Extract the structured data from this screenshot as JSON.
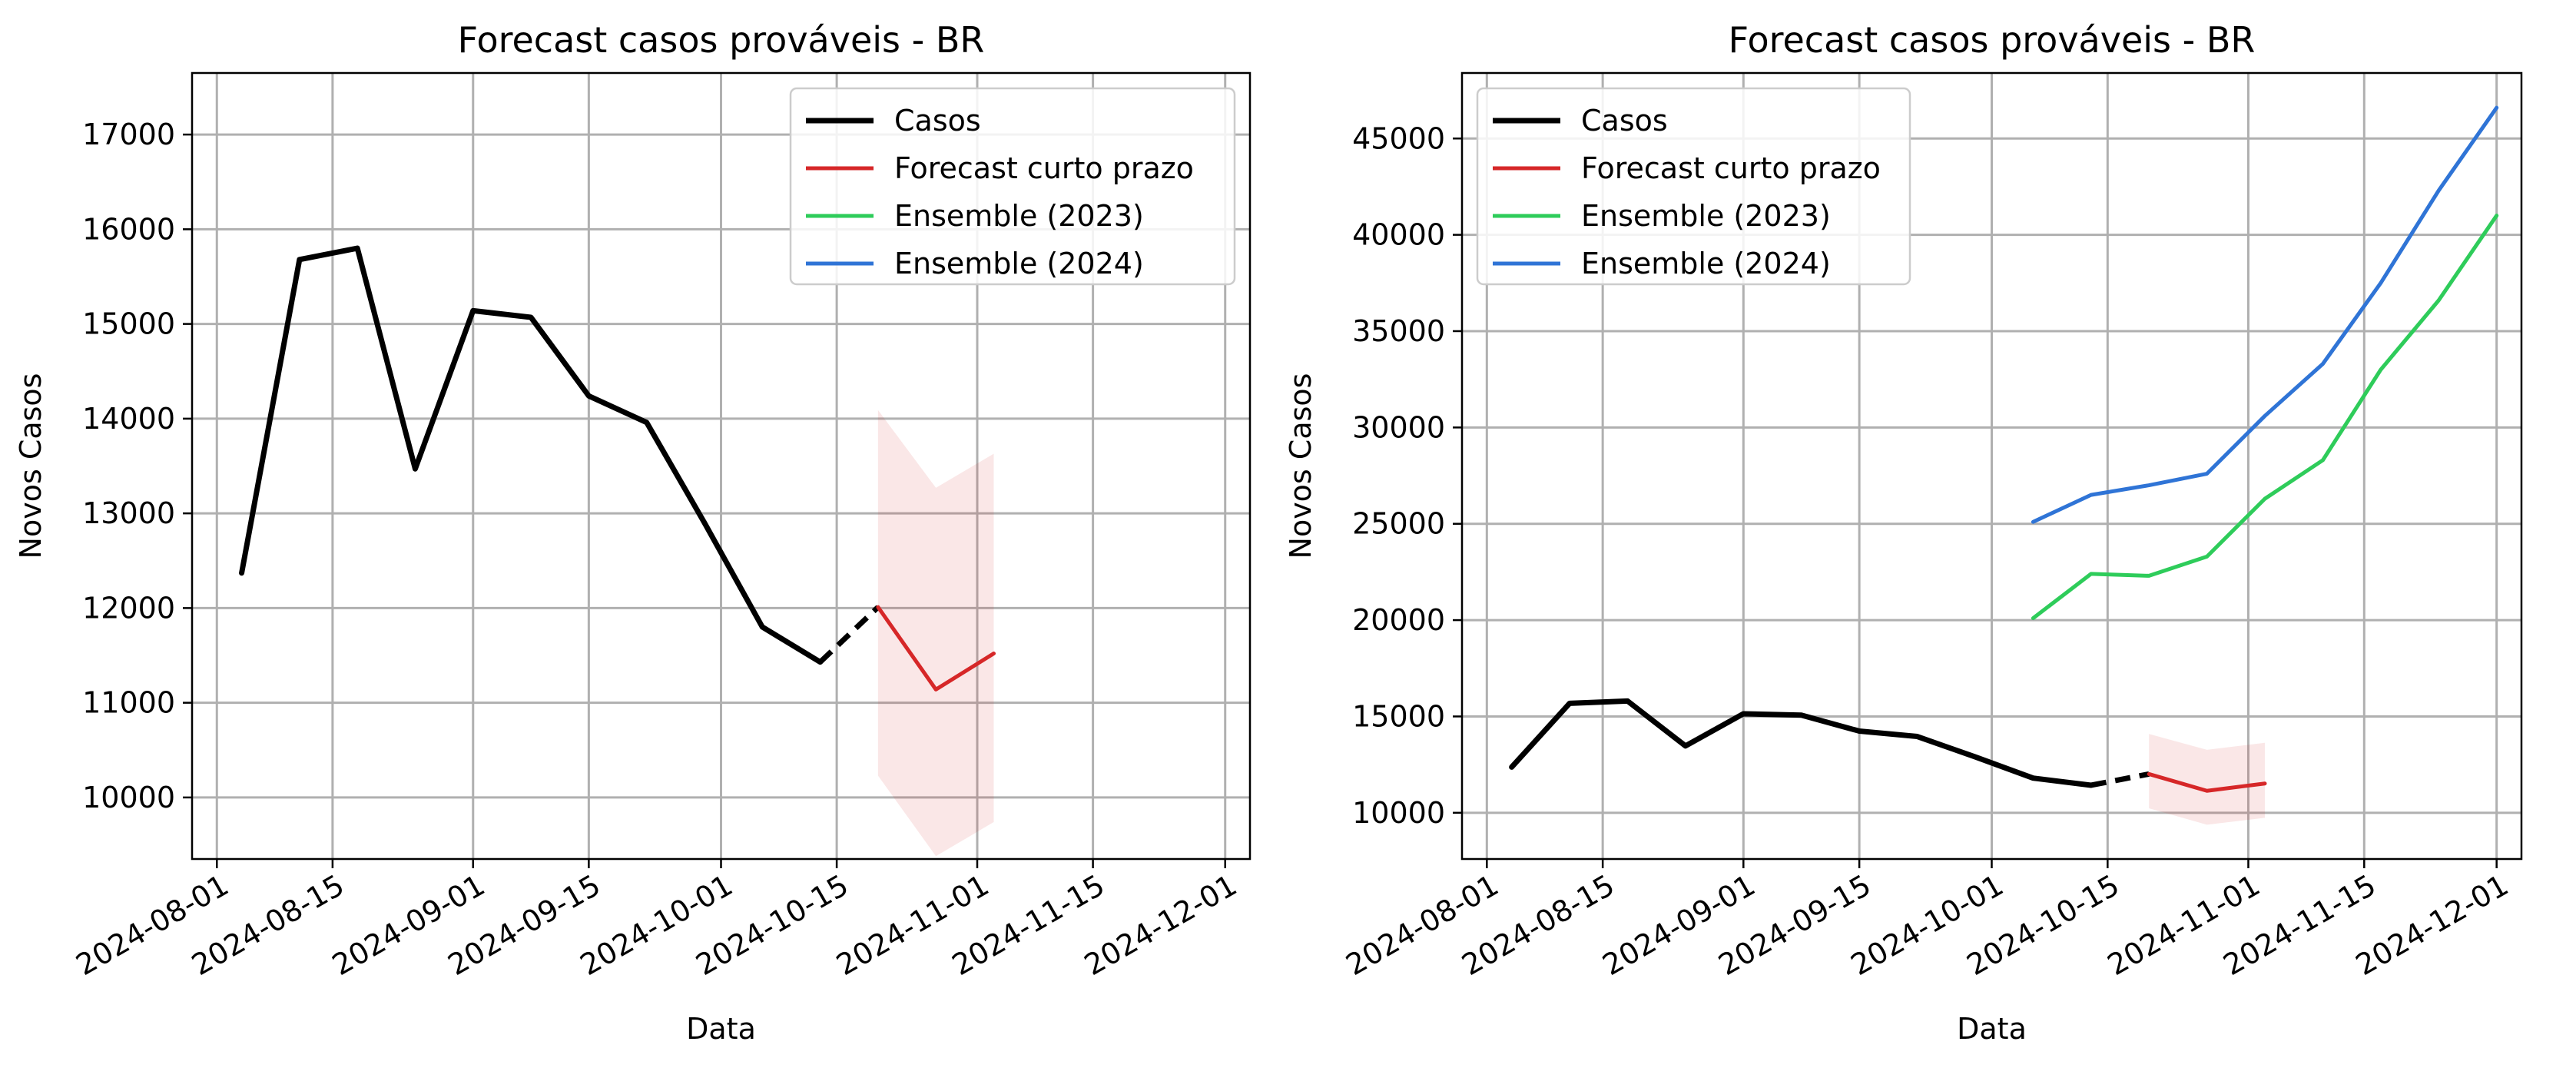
{
  "chart_data": [
    {
      "type": "line",
      "title": "Forecast casos prováveis - BR",
      "xlabel": "Data",
      "ylabel": "Novos Casos",
      "xlim": [
        "2024-07-29",
        "2024-12-04"
      ],
      "ylim": [
        9350,
        17650
      ],
      "grid": true,
      "legend_position": "top-right",
      "xticks": [
        "2024-08-01",
        "2024-08-15",
        "2024-09-01",
        "2024-09-15",
        "2024-10-01",
        "2024-10-15",
        "2024-11-01",
        "2024-11-15",
        "2024-12-01"
      ],
      "yticks": [
        10000,
        11000,
        12000,
        13000,
        14000,
        15000,
        16000,
        17000
      ],
      "series": [
        {
          "name": "Casos",
          "kind": "line",
          "color": "#000000",
          "x": [
            "2024-08-04",
            "2024-08-11",
            "2024-08-18",
            "2024-08-25",
            "2024-09-01",
            "2024-09-08",
            "2024-09-15",
            "2024-09-22",
            "2024-09-29",
            "2024-10-06",
            "2024-10-13"
          ],
          "y": [
            12370,
            15680,
            15800,
            13470,
            15140,
            15070,
            14240,
            13960,
            12900,
            11800,
            11430
          ]
        },
        {
          "name": "",
          "kind": "connector",
          "color": "#000000",
          "x": [
            "2024-10-13",
            "2024-10-20"
          ],
          "y": [
            11430,
            12010
          ]
        },
        {
          "name": "Forecast curto prazo",
          "kind": "line",
          "color": "#d62728",
          "x": [
            "2024-10-20",
            "2024-10-27",
            "2024-11-03"
          ],
          "y": [
            12010,
            11140,
            11520
          ],
          "lower": [
            10230,
            9380,
            9740
          ],
          "upper": [
            14090,
            13270,
            13630
          ]
        },
        {
          "name": "Ensemble (2023)",
          "kind": "line",
          "color": "#2ecc5a",
          "x": [],
          "y": []
        },
        {
          "name": "Ensemble (2024)",
          "kind": "line",
          "color": "#2f74d6",
          "x": [],
          "y": []
        }
      ]
    },
    {
      "type": "line",
      "title": "Forecast casos prováveis - BR",
      "xlabel": "Data",
      "ylabel": "Novos Casos",
      "xlim": [
        "2024-07-29",
        "2024-12-04"
      ],
      "ylim": [
        7600,
        48400
      ],
      "grid": true,
      "legend_position": "top-left",
      "xticks": [
        "2024-08-01",
        "2024-08-15",
        "2024-09-01",
        "2024-09-15",
        "2024-10-01",
        "2024-10-15",
        "2024-11-01",
        "2024-11-15",
        "2024-12-01"
      ],
      "yticks": [
        10000,
        15000,
        20000,
        25000,
        30000,
        35000,
        40000,
        45000
      ],
      "series": [
        {
          "name": "Casos",
          "kind": "line",
          "color": "#000000",
          "x": [
            "2024-08-04",
            "2024-08-11",
            "2024-08-18",
            "2024-08-25",
            "2024-09-01",
            "2024-09-08",
            "2024-09-15",
            "2024-09-22",
            "2024-09-29",
            "2024-10-06",
            "2024-10-13"
          ],
          "y": [
            12370,
            15680,
            15800,
            13470,
            15140,
            15070,
            14240,
            13960,
            12900,
            11800,
            11430
          ]
        },
        {
          "name": "",
          "kind": "connector",
          "color": "#000000",
          "x": [
            "2024-10-13",
            "2024-10-20"
          ],
          "y": [
            11430,
            12010
          ]
        },
        {
          "name": "Forecast curto prazo",
          "kind": "line",
          "color": "#d62728",
          "x": [
            "2024-10-20",
            "2024-10-27",
            "2024-11-03"
          ],
          "y": [
            12010,
            11140,
            11520
          ],
          "lower": [
            10230,
            9380,
            9740
          ],
          "upper": [
            14090,
            13270,
            13630
          ]
        },
        {
          "name": "Ensemble (2023)",
          "kind": "line",
          "color": "#2ecc5a",
          "x": [
            "2024-10-06",
            "2024-10-13",
            "2024-10-20",
            "2024-10-27",
            "2024-11-03",
            "2024-11-10",
            "2024-11-17",
            "2024-11-24",
            "2024-12-01"
          ],
          "y": [
            20100,
            22400,
            22300,
            23300,
            26300,
            28300,
            33000,
            36600,
            41000
          ]
        },
        {
          "name": "Ensemble (2024)",
          "kind": "line",
          "color": "#2f74d6",
          "x": [
            "2024-10-06",
            "2024-10-13",
            "2024-10-20",
            "2024-10-27",
            "2024-11-03",
            "2024-11-10",
            "2024-11-17",
            "2024-11-24",
            "2024-12-01"
          ],
          "y": [
            25100,
            26500,
            27000,
            27600,
            30600,
            33300,
            37500,
            42300,
            46600
          ]
        }
      ]
    }
  ]
}
